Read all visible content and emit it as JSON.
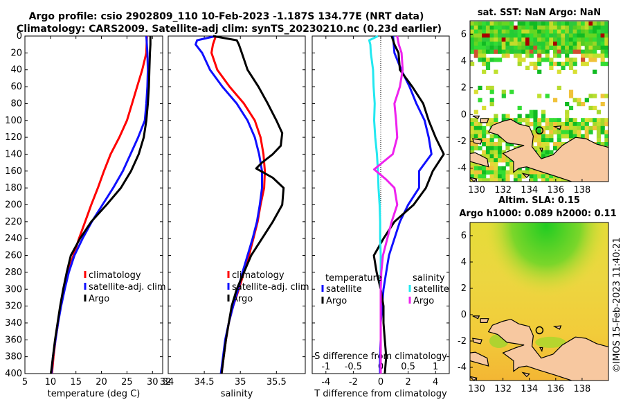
{
  "header": {
    "line1": "Argo profile: csio 2902809_110 10-Feb-2023 -1.187S 134.77E (NRT data)",
    "line2": "Climatology: CARS2009. Satellite-adj clim: synTS_20230210.nc (0.23d earlier)"
  },
  "copyright": "©IMOS 15-Feb-2023 11:40:21",
  "colors": {
    "climatology": "#ff0000",
    "satellite": "#1010ff",
    "argo": "#000000",
    "cyan": "#22e8f0",
    "magenta": "#ee22ee",
    "land": "#f7c8a0"
  },
  "chart_data": [
    {
      "type": "line",
      "id": "temperature",
      "xlabel": "temperature (deg C)",
      "ylabel": "",
      "xlim": [
        5,
        32
      ],
      "ylim": [
        400,
        0
      ],
      "xticks": [
        5,
        10,
        15,
        20,
        25,
        30
      ],
      "yticks": [
        0,
        20,
        40,
        60,
        80,
        100,
        120,
        140,
        160,
        180,
        200,
        220,
        240,
        260,
        280,
        300,
        320,
        340,
        360,
        380,
        400
      ],
      "legend": [
        "climatology",
        "satellite-adj. clim",
        "Argo"
      ],
      "series": [
        {
          "name": "climatology",
          "color": "#ff0000",
          "points": [
            [
              28.9,
              0
            ],
            [
              28.8,
              20
            ],
            [
              28.0,
              40
            ],
            [
              27.0,
              60
            ],
            [
              26.0,
              80
            ],
            [
              25.0,
              100
            ],
            [
              23.5,
              120
            ],
            [
              21.8,
              140
            ],
            [
              20.5,
              160
            ],
            [
              19.3,
              180
            ],
            [
              18.0,
              200
            ],
            [
              16.8,
              220
            ],
            [
              15.6,
              240
            ],
            [
              14.5,
              260
            ],
            [
              13.5,
              280
            ],
            [
              12.7,
              300
            ],
            [
              12.0,
              320
            ],
            [
              11.5,
              340
            ],
            [
              11.0,
              360
            ],
            [
              10.6,
              380
            ],
            [
              10.3,
              400
            ]
          ]
        },
        {
          "name": "satellite-adj. clim",
          "color": "#1010ff",
          "points": [
            [
              28.8,
              0
            ],
            [
              29.0,
              20
            ],
            [
              29.1,
              40
            ],
            [
              29.0,
              60
            ],
            [
              28.8,
              80
            ],
            [
              28.5,
              100
            ],
            [
              27.2,
              120
            ],
            [
              25.7,
              140
            ],
            [
              24.2,
              160
            ],
            [
              22.3,
              180
            ],
            [
              20.2,
              200
            ],
            [
              18.1,
              220
            ],
            [
              16.3,
              240
            ],
            [
              14.7,
              260
            ],
            [
              13.6,
              280
            ],
            [
              12.8,
              300
            ],
            [
              12.1,
              320
            ],
            [
              11.5,
              340
            ],
            [
              11.0,
              360
            ],
            [
              10.5,
              380
            ],
            [
              10.2,
              400
            ]
          ]
        },
        {
          "name": "Argo",
          "color": "#000000",
          "points": [
            [
              29.6,
              0
            ],
            [
              29.6,
              10
            ],
            [
              29.5,
              20
            ],
            [
              29.4,
              40
            ],
            [
              29.3,
              60
            ],
            [
              29.1,
              80
            ],
            [
              28.8,
              100
            ],
            [
              28.3,
              120
            ],
            [
              27.3,
              140
            ],
            [
              25.8,
              160
            ],
            [
              23.8,
              180
            ],
            [
              21.0,
              200
            ],
            [
              18.0,
              220
            ],
            [
              15.8,
              240
            ],
            [
              14.0,
              260
            ],
            [
              13.2,
              280
            ],
            [
              12.5,
              300
            ],
            [
              11.9,
              320
            ],
            [
              11.4,
              340
            ],
            [
              10.9,
              360
            ],
            [
              10.5,
              380
            ],
            [
              10.1,
              400
            ]
          ]
        }
      ]
    },
    {
      "type": "line",
      "id": "salinity",
      "xlabel": "salinity",
      "xlim": [
        34.0,
        35.9
      ],
      "ylim": [
        400,
        0
      ],
      "xticks": [
        34.5,
        35,
        35.5
      ],
      "xticklabels": [
        "34.5",
        "35",
        "35.5"
      ],
      "legend": [
        "climatology",
        "satellite-adj. clim",
        "Argo"
      ],
      "series": [
        {
          "name": "climatology",
          "color": "#ff0000",
          "points": [
            [
              34.66,
              0
            ],
            [
              34.62,
              10
            ],
            [
              34.6,
              20
            ],
            [
              34.68,
              40
            ],
            [
              34.85,
              60
            ],
            [
              35.05,
              80
            ],
            [
              35.2,
              100
            ],
            [
              35.28,
              120
            ],
            [
              35.32,
              140
            ],
            [
              35.34,
              160
            ],
            [
              35.33,
              180
            ],
            [
              35.28,
              200
            ],
            [
              35.24,
              220
            ],
            [
              35.18,
              240
            ],
            [
              35.12,
              260
            ],
            [
              35.05,
              280
            ],
            [
              34.98,
              300
            ],
            [
              34.9,
              320
            ],
            [
              34.84,
              340
            ],
            [
              34.8,
              360
            ],
            [
              34.77,
              380
            ],
            [
              34.74,
              400
            ]
          ]
        },
        {
          "name": "satellite-adj. clim",
          "color": "#1010ff",
          "points": [
            [
              34.66,
              0
            ],
            [
              34.4,
              5
            ],
            [
              34.38,
              10
            ],
            [
              34.47,
              20
            ],
            [
              34.58,
              40
            ],
            [
              34.75,
              60
            ],
            [
              34.95,
              80
            ],
            [
              35.1,
              100
            ],
            [
              35.2,
              120
            ],
            [
              35.26,
              140
            ],
            [
              35.3,
              160
            ],
            [
              35.3,
              180
            ],
            [
              35.27,
              200
            ],
            [
              35.23,
              220
            ],
            [
              35.17,
              240
            ],
            [
              35.1,
              260
            ],
            [
              35.03,
              280
            ],
            [
              34.97,
              300
            ],
            [
              34.9,
              320
            ],
            [
              34.84,
              340
            ],
            [
              34.79,
              360
            ],
            [
              34.76,
              380
            ],
            [
              34.73,
              400
            ]
          ]
        },
        {
          "name": "Argo",
          "color": "#000000",
          "points": [
            [
              34.62,
              0
            ],
            [
              34.95,
              5
            ],
            [
              34.98,
              10
            ],
            [
              35.02,
              20
            ],
            [
              35.1,
              40
            ],
            [
              35.25,
              60
            ],
            [
              35.38,
              80
            ],
            [
              35.5,
              100
            ],
            [
              35.58,
              115
            ],
            [
              35.56,
              130
            ],
            [
              35.45,
              140
            ],
            [
              35.3,
              150
            ],
            [
              35.22,
              157
            ],
            [
              35.45,
              168
            ],
            [
              35.6,
              180
            ],
            [
              35.58,
              200
            ],
            [
              35.45,
              220
            ],
            [
              35.3,
              240
            ],
            [
              35.15,
              260
            ],
            [
              35.05,
              280
            ],
            [
              34.95,
              300
            ],
            [
              34.88,
              320
            ],
            [
              34.84,
              340
            ],
            [
              34.8,
              360
            ],
            [
              34.77,
              380
            ],
            [
              34.74,
              400
            ]
          ]
        }
      ]
    },
    {
      "type": "line",
      "id": "difference",
      "xlabel": "T difference from climatology",
      "top_axis_label": "S difference from climatology",
      "xlim": [
        -5,
        5
      ],
      "ylim": [
        400,
        0
      ],
      "xticks": [
        -4,
        -2,
        0,
        2,
        4
      ],
      "top_xticks": [
        -1,
        -0.5,
        0,
        0.5,
        1
      ],
      "top_xticklabels": [
        "-1",
        "-0.5",
        "0",
        "0.5",
        "1"
      ],
      "legend_left": {
        "title": "temperature",
        "items": [
          "satellite",
          "Argo"
        ]
      },
      "legend_right": {
        "title": "salinity",
        "items": [
          "satellite",
          "Argo"
        ]
      },
      "series": [
        {
          "name": "temperature satellite",
          "color": "#1010ff",
          "points": [
            [
              0.9,
              0
            ],
            [
              1.0,
              20
            ],
            [
              1.5,
              40
            ],
            [
              2.1,
              60
            ],
            [
              2.6,
              80
            ],
            [
              3.2,
              100
            ],
            [
              3.5,
              120
            ],
            [
              3.7,
              140
            ],
            [
              2.8,
              160
            ],
            [
              2.8,
              180
            ],
            [
              2.0,
              200
            ],
            [
              1.4,
              220
            ],
            [
              1.0,
              240
            ],
            [
              0.6,
              260
            ],
            [
              0.4,
              280
            ],
            [
              0.2,
              300
            ],
            [
              0.1,
              320
            ],
            [
              0,
              340
            ],
            [
              0,
              360
            ],
            [
              -0.05,
              380
            ],
            [
              -0.05,
              400
            ]
          ]
        },
        {
          "name": "temperature Argo",
          "color": "#000000",
          "points": [
            [
              0.8,
              0
            ],
            [
              1.0,
              10
            ],
            [
              1.3,
              20
            ],
            [
              1.4,
              40
            ],
            [
              2.3,
              60
            ],
            [
              3.1,
              80
            ],
            [
              3.5,
              100
            ],
            [
              4.0,
              120
            ],
            [
              4.6,
              140
            ],
            [
              3.8,
              160
            ],
            [
              3.3,
              180
            ],
            [
              2.4,
              200
            ],
            [
              1.0,
              220
            ],
            [
              0.2,
              240
            ],
            [
              -0.5,
              260
            ],
            [
              -0.3,
              280
            ],
            [
              0,
              300
            ],
            [
              0.2,
              320
            ],
            [
              0.2,
              340
            ],
            [
              0.3,
              360
            ],
            [
              0.4,
              380
            ],
            [
              0.3,
              400
            ]
          ]
        },
        {
          "name": "salinity satellite",
          "color": "#22e8f0",
          "points": [
            [
              -0.05,
              0
            ],
            [
              -0.21,
              5
            ],
            [
              -0.19,
              10
            ],
            [
              -0.18,
              20
            ],
            [
              -0.14,
              40
            ],
            [
              -0.13,
              60
            ],
            [
              -0.11,
              80
            ],
            [
              -0.12,
              100
            ],
            [
              -0.1,
              120
            ],
            [
              -0.07,
              140
            ],
            [
              -0.05,
              160
            ],
            [
              -0.04,
              180
            ],
            [
              -0.02,
              200
            ],
            [
              -0.01,
              220
            ],
            [
              -0.01,
              240
            ],
            [
              0,
              260
            ],
            [
              0,
              280
            ],
            [
              0,
              300
            ],
            [
              0,
              320
            ],
            [
              0,
              340
            ],
            [
              0,
              360
            ],
            [
              0,
              380
            ],
            [
              0,
              400
            ]
          ]
        },
        {
          "name": "salinity Argo",
          "color": "#ee22ee",
          "points": [
            [
              0.3,
              0
            ],
            [
              0.33,
              10
            ],
            [
              0.38,
              20
            ],
            [
              0.4,
              40
            ],
            [
              0.35,
              60
            ],
            [
              0.25,
              80
            ],
            [
              0.28,
              100
            ],
            [
              0.3,
              120
            ],
            [
              0.22,
              140
            ],
            [
              -0.12,
              158
            ],
            [
              0.1,
              170
            ],
            [
              0.25,
              180
            ],
            [
              0.3,
              200
            ],
            [
              0.2,
              220
            ],
            [
              0.12,
              240
            ],
            [
              0.04,
              260
            ],
            [
              0.01,
              280
            ],
            [
              0,
              300
            ],
            [
              0,
              320
            ],
            [
              0,
              340
            ],
            [
              0,
              360
            ],
            [
              0,
              380
            ],
            [
              0,
              400
            ]
          ]
        }
      ]
    },
    {
      "type": "heatmap",
      "id": "sst-map",
      "title": "sat. SST: NaN Argo: NaN",
      "xlim": [
        129.5,
        140
      ],
      "ylim": [
        -5,
        7
      ],
      "xticks": [
        130,
        132,
        134,
        136,
        138
      ],
      "yticks": [
        -4,
        -2,
        0,
        2,
        4,
        6
      ],
      "float_position": [
        134.77,
        -1.187
      ]
    },
    {
      "type": "heatmap",
      "id": "sla-map",
      "title": "Altim. SLA: 0.15",
      "subtitle": "Argo h1000: 0.089 h2000: 0.11",
      "xlim": [
        129.5,
        140
      ],
      "ylim": [
        -5,
        7
      ],
      "xticks": [
        130,
        132,
        134,
        136,
        138
      ],
      "yticks": [
        -4,
        -2,
        0,
        2,
        4,
        6
      ],
      "float_position": [
        134.77,
        -1.187
      ]
    }
  ]
}
